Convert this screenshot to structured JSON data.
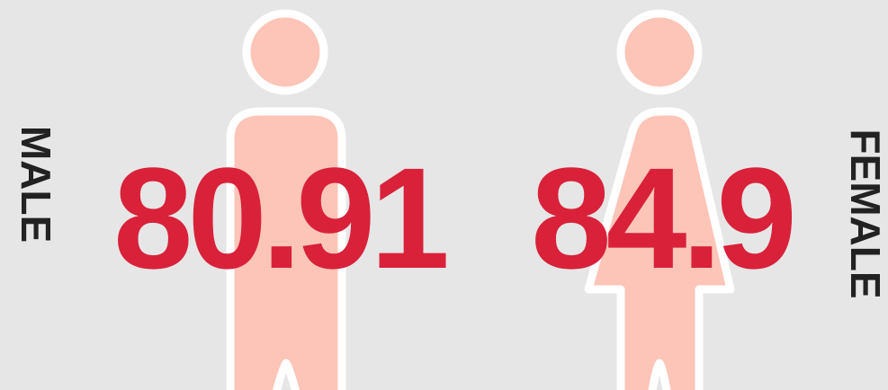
{
  "male": {
    "label": "MALE",
    "value": 80.91
  },
  "female": {
    "label": "FEMALE",
    "value": 84.9
  }
}
